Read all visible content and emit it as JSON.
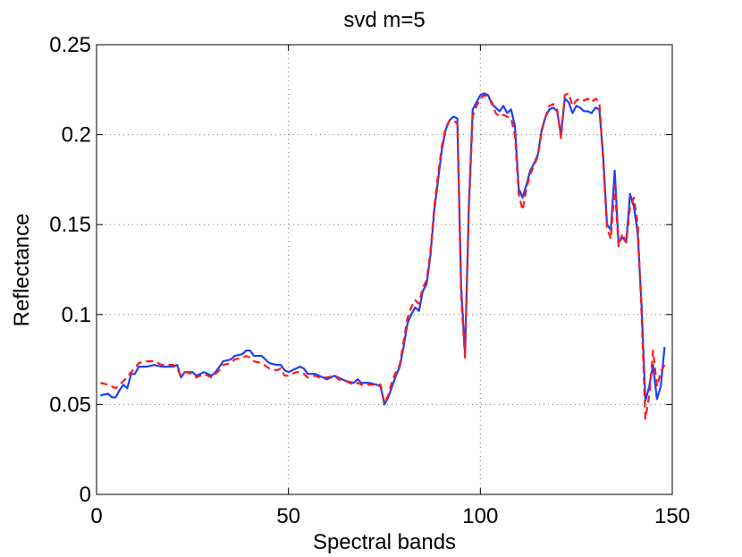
{
  "chart_data": {
    "type": "line",
    "title": "svd m=5",
    "xlabel": "Spectral bands",
    "ylabel": "Reflectance",
    "x": [
      1,
      3,
      4,
      5,
      6,
      7,
      8,
      9,
      10,
      11,
      13,
      15,
      17,
      20,
      21,
      22,
      23,
      25,
      26,
      28,
      30,
      31,
      32,
      33,
      35,
      36,
      38,
      39,
      40,
      41,
      43,
      45,
      47,
      48,
      49,
      50,
      52,
      53,
      54,
      55,
      57,
      58,
      60,
      62,
      63,
      65,
      67,
      68,
      69,
      71,
      73,
      74,
      75,
      76,
      77,
      78,
      79,
      80,
      81,
      82,
      83,
      84,
      85,
      86,
      87,
      88,
      89,
      90,
      91,
      92,
      93,
      94,
      95,
      96,
      97,
      98,
      99,
      100,
      101,
      102,
      103,
      104,
      105,
      106,
      107,
      108,
      109,
      110,
      111,
      112,
      113,
      114,
      115,
      116,
      117,
      118,
      119,
      120,
      121,
      122,
      123,
      124,
      125,
      126,
      127,
      128,
      129,
      130,
      131,
      132,
      133,
      134,
      135,
      136,
      137,
      138,
      139,
      140,
      141,
      142,
      143,
      144,
      145,
      146,
      147,
      148
    ],
    "series": [
      {
        "name": "blue",
        "color": "#1f3fff",
        "dash": false,
        "values": [
          0.055,
          0.056,
          0.054,
          0.054,
          0.058,
          0.061,
          0.059,
          0.067,
          0.067,
          0.071,
          0.071,
          0.072,
          0.071,
          0.071,
          0.072,
          0.065,
          0.068,
          0.068,
          0.066,
          0.068,
          0.066,
          0.068,
          0.071,
          0.074,
          0.075,
          0.077,
          0.078,
          0.08,
          0.08,
          0.077,
          0.077,
          0.073,
          0.072,
          0.072,
          0.069,
          0.068,
          0.07,
          0.071,
          0.07,
          0.067,
          0.067,
          0.066,
          0.064,
          0.066,
          0.065,
          0.063,
          0.062,
          0.064,
          0.062,
          0.062,
          0.061,
          0.06,
          0.05,
          0.054,
          0.06,
          0.066,
          0.071,
          0.082,
          0.095,
          0.1,
          0.104,
          0.102,
          0.113,
          0.117,
          0.133,
          0.158,
          0.175,
          0.192,
          0.203,
          0.208,
          0.21,
          0.209,
          0.115,
          0.078,
          0.16,
          0.214,
          0.218,
          0.222,
          0.223,
          0.222,
          0.217,
          0.215,
          0.213,
          0.216,
          0.212,
          0.214,
          0.205,
          0.17,
          0.165,
          0.172,
          0.18,
          0.184,
          0.189,
          0.203,
          0.21,
          0.214,
          0.215,
          0.213,
          0.2,
          0.22,
          0.218,
          0.212,
          0.216,
          0.215,
          0.213,
          0.213,
          0.212,
          0.215,
          0.214,
          0.188,
          0.15,
          0.147,
          0.18,
          0.14,
          0.143,
          0.14,
          0.167,
          0.16,
          0.145,
          0.105,
          0.052,
          0.06,
          0.072,
          0.053,
          0.06,
          0.082
        ]
      },
      {
        "name": "red",
        "color": "#ff1a1a",
        "dash": true,
        "values": [
          0.062,
          0.061,
          0.06,
          0.059,
          0.061,
          0.063,
          0.065,
          0.068,
          0.07,
          0.073,
          0.074,
          0.074,
          0.072,
          0.072,
          0.07,
          0.066,
          0.068,
          0.067,
          0.065,
          0.067,
          0.065,
          0.067,
          0.069,
          0.072,
          0.073,
          0.075,
          0.076,
          0.077,
          0.076,
          0.074,
          0.073,
          0.07,
          0.069,
          0.07,
          0.066,
          0.066,
          0.068,
          0.068,
          0.067,
          0.065,
          0.066,
          0.065,
          0.065,
          0.066,
          0.064,
          0.063,
          0.061,
          0.062,
          0.061,
          0.061,
          0.061,
          0.061,
          0.051,
          0.055,
          0.063,
          0.068,
          0.072,
          0.085,
          0.098,
          0.104,
          0.108,
          0.106,
          0.115,
          0.119,
          0.135,
          0.16,
          0.178,
          0.194,
          0.204,
          0.208,
          0.208,
          0.206,
          0.11,
          0.076,
          0.158,
          0.21,
          0.216,
          0.22,
          0.222,
          0.221,
          0.218,
          0.212,
          0.21,
          0.211,
          0.21,
          0.209,
          0.2,
          0.167,
          0.158,
          0.17,
          0.178,
          0.183,
          0.188,
          0.202,
          0.21,
          0.216,
          0.217,
          0.214,
          0.198,
          0.222,
          0.223,
          0.216,
          0.219,
          0.22,
          0.219,
          0.22,
          0.218,
          0.22,
          0.218,
          0.185,
          0.148,
          0.142,
          0.172,
          0.138,
          0.145,
          0.14,
          0.16,
          0.165,
          0.15,
          0.1,
          0.042,
          0.055,
          0.08,
          0.06,
          0.068,
          0.072
        ]
      }
    ],
    "xlim": [
      0,
      150
    ],
    "xticks": [
      0,
      50,
      100,
      150
    ],
    "ylim": [
      0,
      0.25
    ],
    "yticks": [
      0,
      0.05,
      0.1,
      0.15,
      0.2,
      0.25
    ],
    "grid": true
  }
}
